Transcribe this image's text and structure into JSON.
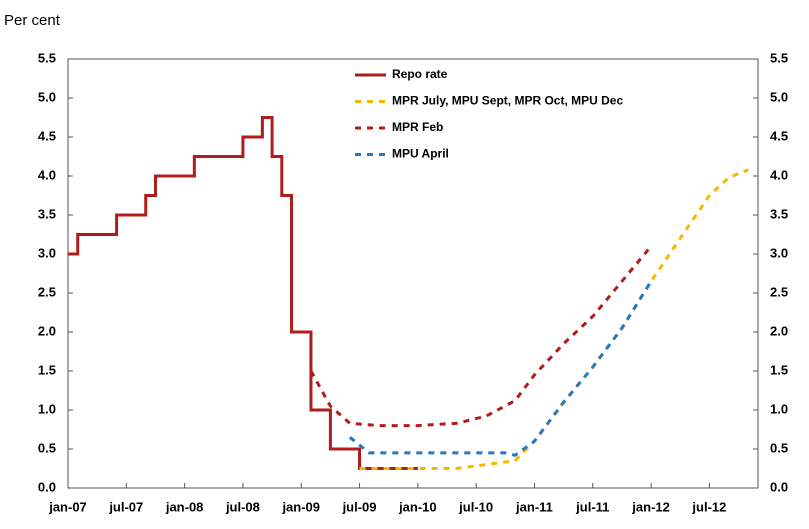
{
  "chart_data": {
    "type": "line",
    "y_axis_label": "Per cent",
    "xlim": [
      "2007-01",
      "2012-12"
    ],
    "xticks": [
      {
        "value": "2007-01",
        "label": "jan-07"
      },
      {
        "value": "2007-07",
        "label": "jul-07"
      },
      {
        "value": "2008-01",
        "label": "jan-08"
      },
      {
        "value": "2008-07",
        "label": "jul-08"
      },
      {
        "value": "2009-01",
        "label": "jan-09"
      },
      {
        "value": "2009-07",
        "label": "jul-09"
      },
      {
        "value": "2010-01",
        "label": "jan-10"
      },
      {
        "value": "2010-07",
        "label": "jul-10"
      },
      {
        "value": "2011-01",
        "label": "jan-11"
      },
      {
        "value": "2011-07",
        "label": "jul-11"
      },
      {
        "value": "2012-01",
        "label": "jan-12"
      },
      {
        "value": "2012-07",
        "label": "jul-12"
      }
    ],
    "ylim": [
      0,
      5.5
    ],
    "yticks": [
      {
        "value": 0,
        "label": "0.0"
      },
      0.5,
      {
        "value": 1,
        "label": "1.0"
      },
      1.5,
      {
        "value": 2,
        "label": "2.0"
      },
      2.5,
      {
        "value": 3,
        "label": "3.0"
      },
      3.5,
      {
        "value": 4,
        "label": "4.0"
      },
      4.5,
      {
        "value": 5,
        "label": "5.0"
      },
      5.5
    ],
    "series": [
      {
        "name": "Repo rate",
        "color": "#b01c1c",
        "step": true,
        "dashed": false,
        "x": [
          "2007-01",
          "2007-02",
          "2007-06",
          "2007-09",
          "2007-10",
          "2008-02",
          "2008-07",
          "2008-09",
          "2008-10",
          "2008-11",
          "2008-12",
          "2009-02",
          "2009-04",
          "2009-07",
          "2010-01"
        ],
        "values": [
          3.0,
          3.25,
          3.5,
          3.75,
          4.0,
          4.25,
          4.5,
          4.75,
          4.25,
          3.75,
          2.0,
          1.0,
          0.5,
          0.25,
          0.25
        ]
      },
      {
        "name": "MPR July, MPU Sept, MPR Oct, MPU Dec",
        "color": "#f5b800",
        "step": false,
        "dashed": true,
        "x": [
          "2009-07",
          "2010-05",
          "2010-08",
          "2010-11",
          "2011-01",
          "2011-04",
          "2011-07",
          "2011-10",
          "2012-01",
          "2012-04",
          "2012-07",
          "2012-09",
          "2012-11"
        ],
        "values": [
          0.25,
          0.25,
          0.3,
          0.35,
          0.6,
          1.1,
          1.55,
          2.05,
          2.65,
          3.2,
          3.75,
          3.98,
          4.08
        ]
      },
      {
        "name": "MPR Feb",
        "color": "#b01c1c",
        "step": false,
        "dashed": true,
        "x": [
          "2009-02",
          "2009-04",
          "2009-06",
          "2009-09",
          "2010-01",
          "2010-05",
          "2010-08",
          "2010-11",
          "2011-01",
          "2011-04",
          "2011-07",
          "2011-10",
          "2012-01"
        ],
        "values": [
          1.5,
          1.05,
          0.83,
          0.8,
          0.8,
          0.83,
          0.92,
          1.12,
          1.45,
          1.85,
          2.2,
          2.65,
          3.1
        ]
      },
      {
        "name": "MPU April",
        "color": "#1f78c8",
        "step": false,
        "dashed": true,
        "x": [
          "2009-06",
          "2009-08",
          "2010-01",
          "2010-10",
          "2010-11",
          "2011-01",
          "2011-04",
          "2011-07",
          "2011-10",
          "2012-01"
        ],
        "values": [
          0.65,
          0.45,
          0.45,
          0.45,
          0.42,
          0.6,
          1.1,
          1.55,
          2.05,
          2.65
        ]
      }
    ]
  }
}
